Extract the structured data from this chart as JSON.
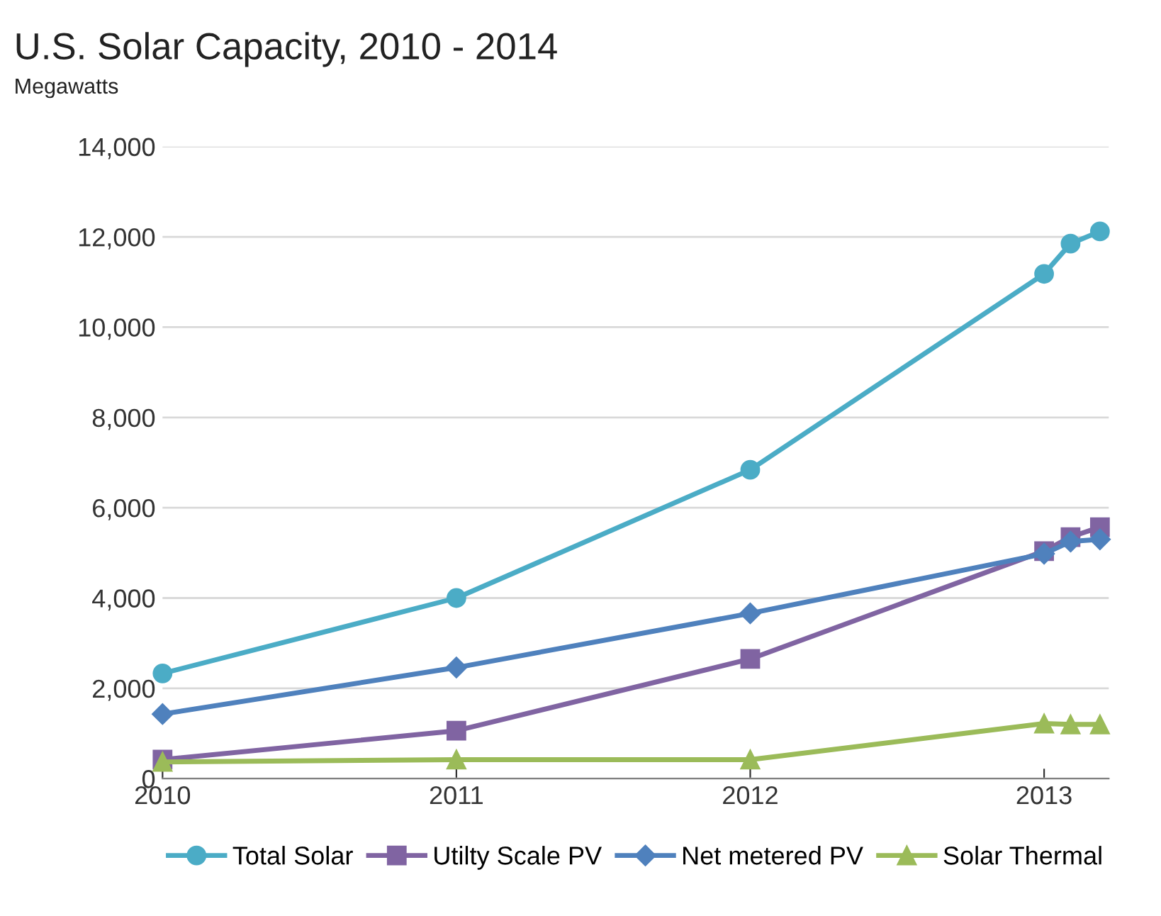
{
  "chart_data": {
    "type": "line",
    "title": "U.S. Solar Capacity, 2010 - 2014",
    "subtitle": "Megawatts",
    "x": [
      2010,
      2011,
      2012,
      2013,
      2013.09,
      2013.19
    ],
    "series": [
      {
        "name": "Total Solar",
        "color": "#4bacc6",
        "marker": "circle",
        "values": [
          2330,
          4000,
          6840,
          11180,
          11850,
          12120
        ]
      },
      {
        "name": "Utilty Scale PV",
        "color": "#8064a2",
        "marker": "square",
        "values": [
          420,
          1060,
          2650,
          5040,
          5350,
          5570
        ]
      },
      {
        "name": "Net metered PV",
        "color": "#4f81bd",
        "marker": "diamond",
        "values": [
          1430,
          2460,
          3660,
          4980,
          5250,
          5300
        ]
      },
      {
        "name": "Solar Thermal",
        "color": "#9bbb59",
        "marker": "triangle",
        "values": [
          370,
          420,
          420,
          1220,
          1200,
          1200
        ]
      }
    ],
    "xlim": [
      2010,
      2013.22
    ],
    "xticks": [
      2010,
      2011,
      2012,
      2013
    ],
    "ylim": [
      0,
      14000
    ],
    "yticks": [
      {
        "value": 0,
        "label": "0"
      },
      {
        "value": 2000,
        "label": "2,000"
      },
      {
        "value": 4000,
        "label": "4,000"
      },
      {
        "value": 6000,
        "label": "6,000"
      },
      {
        "value": 8000,
        "label": "8,000"
      },
      {
        "value": 10000,
        "label": "10,000"
      },
      {
        "value": 12000,
        "label": "12,000"
      },
      {
        "value": 14000,
        "label": "14,000"
      }
    ],
    "grid": "y",
    "legend": "bottom",
    "line_style": "solid"
  }
}
